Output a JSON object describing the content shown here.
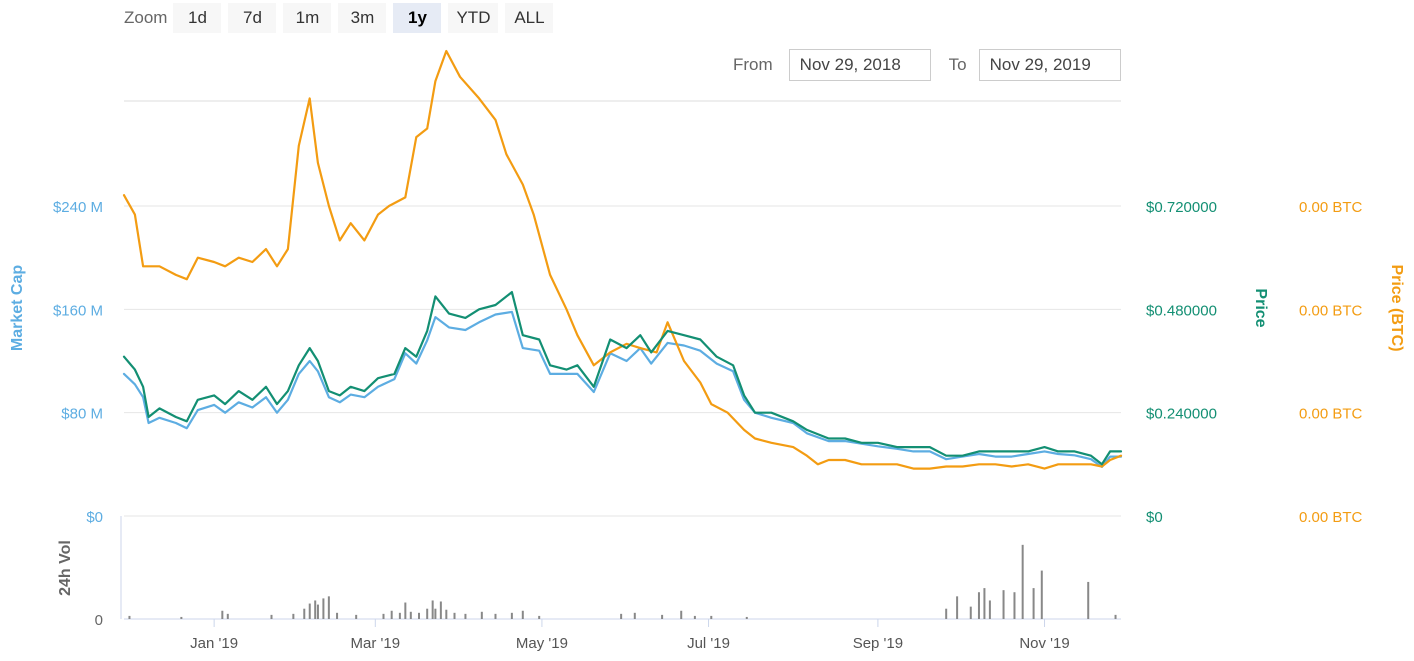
{
  "zoom": {
    "label": "Zoom",
    "buttons": [
      "1d",
      "7d",
      "1m",
      "3m",
      "1y",
      "YTD",
      "ALL"
    ],
    "active": "1y"
  },
  "range": {
    "from_label": "From",
    "from_value": "Nov 29, 2018",
    "to_label": "To",
    "to_value": "Nov 29, 2019"
  },
  "colors": {
    "market_cap": "#5DADE2",
    "price": "#138F73",
    "price_btc": "#F39C12",
    "volume": "#888888",
    "grid": "#e6e6e6"
  },
  "chart_data": {
    "type": "line",
    "x_range": [
      "2018-11-29",
      "2019-11-29"
    ],
    "x_ticks": [
      {
        "date": "2019-01-01",
        "label": "Jan '19"
      },
      {
        "date": "2019-03-01",
        "label": "Mar '19"
      },
      {
        "date": "2019-05-01",
        "label": "May '19"
      },
      {
        "date": "2019-07-01",
        "label": "Jul '19"
      },
      {
        "date": "2019-09-01",
        "label": "Sep '19"
      },
      {
        "date": "2019-11-01",
        "label": "Nov '19"
      }
    ],
    "axes": {
      "market_cap": {
        "title": "Market Cap",
        "ticks": [
          "$0",
          "$80 M",
          "$160 M",
          "$240 M"
        ],
        "range": [
          0,
          240000000
        ]
      },
      "price": {
        "title": "Price",
        "ticks": [
          "$0",
          "$0.240000",
          "$0.480000",
          "$0.720000"
        ],
        "range": [
          0,
          0.72
        ]
      },
      "price_btc": {
        "title": "Price (BTC)",
        "ticks": [
          "0.00 BTC",
          "0.00 BTC",
          "0.00 BTC",
          "0.00 BTC"
        ]
      },
      "volume": {
        "title": "24h Vol",
        "ticks": [
          "0",
          "0"
        ]
      }
    },
    "series": [
      {
        "key": "market_cap",
        "axis": "market_cap",
        "points": [
          [
            "2018-11-29",
            110
          ],
          [
            "2018-12-03",
            102
          ],
          [
            "2018-12-06",
            92
          ],
          [
            "2018-12-08",
            72
          ],
          [
            "2018-12-12",
            76
          ],
          [
            "2018-12-18",
            72
          ],
          [
            "2018-12-22",
            68
          ],
          [
            "2018-12-26",
            82
          ],
          [
            "2019-01-01",
            86
          ],
          [
            "2019-01-05",
            80
          ],
          [
            "2019-01-10",
            88
          ],
          [
            "2019-01-15",
            84
          ],
          [
            "2019-01-20",
            92
          ],
          [
            "2019-01-24",
            80
          ],
          [
            "2019-01-28",
            90
          ],
          [
            "2019-02-01",
            110
          ],
          [
            "2019-02-05",
            120
          ],
          [
            "2019-02-08",
            112
          ],
          [
            "2019-02-12",
            92
          ],
          [
            "2019-02-16",
            88
          ],
          [
            "2019-02-20",
            94
          ],
          [
            "2019-02-25",
            92
          ],
          [
            "2019-03-02",
            100
          ],
          [
            "2019-03-08",
            106
          ],
          [
            "2019-03-12",
            126
          ],
          [
            "2019-03-16",
            118
          ],
          [
            "2019-03-20",
            136
          ],
          [
            "2019-03-23",
            154
          ],
          [
            "2019-03-28",
            146
          ],
          [
            "2019-04-03",
            144
          ],
          [
            "2019-04-08",
            150
          ],
          [
            "2019-04-14",
            156
          ],
          [
            "2019-04-20",
            158
          ],
          [
            "2019-04-24",
            130
          ],
          [
            "2019-04-30",
            128
          ],
          [
            "2019-05-04",
            110
          ],
          [
            "2019-05-10",
            110
          ],
          [
            "2019-05-14",
            110
          ],
          [
            "2019-05-20",
            96
          ],
          [
            "2019-05-26",
            126
          ],
          [
            "2019-06-01",
            120
          ],
          [
            "2019-06-06",
            130
          ],
          [
            "2019-06-10",
            118
          ],
          [
            "2019-06-16",
            134
          ],
          [
            "2019-06-22",
            132
          ],
          [
            "2019-06-28",
            128
          ],
          [
            "2019-07-04",
            118
          ],
          [
            "2019-07-10",
            112
          ],
          [
            "2019-07-14",
            90
          ],
          [
            "2019-07-18",
            80
          ],
          [
            "2019-07-24",
            76
          ],
          [
            "2019-08-01",
            72
          ],
          [
            "2019-08-06",
            64
          ],
          [
            "2019-08-14",
            58
          ],
          [
            "2019-08-20",
            58
          ],
          [
            "2019-08-26",
            56
          ],
          [
            "2019-09-01",
            54
          ],
          [
            "2019-09-08",
            52
          ],
          [
            "2019-09-14",
            50
          ],
          [
            "2019-09-20",
            50
          ],
          [
            "2019-09-26",
            44
          ],
          [
            "2019-10-02",
            46
          ],
          [
            "2019-10-08",
            48
          ],
          [
            "2019-10-14",
            46
          ],
          [
            "2019-10-20",
            46
          ],
          [
            "2019-10-26",
            48
          ],
          [
            "2019-11-01",
            50
          ],
          [
            "2019-11-06",
            48
          ],
          [
            "2019-11-12",
            47
          ],
          [
            "2019-11-18",
            44
          ],
          [
            "2019-11-22",
            38
          ],
          [
            "2019-11-25",
            46
          ],
          [
            "2019-11-29",
            46
          ]
        ]
      },
      {
        "key": "price",
        "axis": "price",
        "points": [
          [
            "2018-11-29",
            0.37
          ],
          [
            "2018-12-03",
            0.34
          ],
          [
            "2018-12-06",
            0.3
          ],
          [
            "2018-12-08",
            0.23
          ],
          [
            "2018-12-12",
            0.25
          ],
          [
            "2018-12-18",
            0.23
          ],
          [
            "2018-12-22",
            0.22
          ],
          [
            "2018-12-26",
            0.27
          ],
          [
            "2019-01-01",
            0.28
          ],
          [
            "2019-01-05",
            0.26
          ],
          [
            "2019-01-10",
            0.29
          ],
          [
            "2019-01-15",
            0.27
          ],
          [
            "2019-01-20",
            0.3
          ],
          [
            "2019-01-24",
            0.26
          ],
          [
            "2019-01-28",
            0.29
          ],
          [
            "2019-02-01",
            0.35
          ],
          [
            "2019-02-05",
            0.39
          ],
          [
            "2019-02-08",
            0.36
          ],
          [
            "2019-02-12",
            0.29
          ],
          [
            "2019-02-16",
            0.28
          ],
          [
            "2019-02-20",
            0.3
          ],
          [
            "2019-02-25",
            0.29
          ],
          [
            "2019-03-02",
            0.32
          ],
          [
            "2019-03-08",
            0.33
          ],
          [
            "2019-03-12",
            0.39
          ],
          [
            "2019-03-16",
            0.37
          ],
          [
            "2019-03-20",
            0.43
          ],
          [
            "2019-03-23",
            0.51
          ],
          [
            "2019-03-28",
            0.47
          ],
          [
            "2019-04-03",
            0.46
          ],
          [
            "2019-04-08",
            0.48
          ],
          [
            "2019-04-14",
            0.49
          ],
          [
            "2019-04-20",
            0.52
          ],
          [
            "2019-04-24",
            0.42
          ],
          [
            "2019-04-30",
            0.41
          ],
          [
            "2019-05-04",
            0.35
          ],
          [
            "2019-05-10",
            0.34
          ],
          [
            "2019-05-14",
            0.35
          ],
          [
            "2019-05-20",
            0.3
          ],
          [
            "2019-05-26",
            0.41
          ],
          [
            "2019-06-01",
            0.39
          ],
          [
            "2019-06-06",
            0.42
          ],
          [
            "2019-06-10",
            0.38
          ],
          [
            "2019-06-16",
            0.43
          ],
          [
            "2019-06-22",
            0.42
          ],
          [
            "2019-06-28",
            0.41
          ],
          [
            "2019-07-04",
            0.37
          ],
          [
            "2019-07-10",
            0.35
          ],
          [
            "2019-07-14",
            0.28
          ],
          [
            "2019-07-18",
            0.24
          ],
          [
            "2019-07-24",
            0.24
          ],
          [
            "2019-08-01",
            0.22
          ],
          [
            "2019-08-06",
            0.2
          ],
          [
            "2019-08-14",
            0.18
          ],
          [
            "2019-08-20",
            0.18
          ],
          [
            "2019-08-26",
            0.17
          ],
          [
            "2019-09-01",
            0.17
          ],
          [
            "2019-09-08",
            0.16
          ],
          [
            "2019-09-14",
            0.16
          ],
          [
            "2019-09-20",
            0.16
          ],
          [
            "2019-09-26",
            0.14
          ],
          [
            "2019-10-02",
            0.14
          ],
          [
            "2019-10-08",
            0.15
          ],
          [
            "2019-10-14",
            0.15
          ],
          [
            "2019-10-20",
            0.15
          ],
          [
            "2019-10-26",
            0.15
          ],
          [
            "2019-11-01",
            0.16
          ],
          [
            "2019-11-06",
            0.15
          ],
          [
            "2019-11-12",
            0.15
          ],
          [
            "2019-11-18",
            0.14
          ],
          [
            "2019-11-22",
            0.12
          ],
          [
            "2019-11-25",
            0.15
          ],
          [
            "2019-11-29",
            0.15
          ]
        ]
      },
      {
        "key": "price_btc",
        "axis": "price_btc",
        "points": [
          [
            "2018-11-29",
            0.745
          ],
          [
            "2018-12-03",
            0.7
          ],
          [
            "2018-12-06",
            0.58
          ],
          [
            "2018-12-12",
            0.58
          ],
          [
            "2018-12-18",
            0.56
          ],
          [
            "2018-12-22",
            0.55
          ],
          [
            "2018-12-26",
            0.6
          ],
          [
            "2019-01-01",
            0.59
          ],
          [
            "2019-01-05",
            0.58
          ],
          [
            "2019-01-10",
            0.6
          ],
          [
            "2019-01-15",
            0.59
          ],
          [
            "2019-01-20",
            0.62
          ],
          [
            "2019-01-24",
            0.58
          ],
          [
            "2019-01-28",
            0.62
          ],
          [
            "2019-02-01",
            0.86
          ],
          [
            "2019-02-05",
            0.97
          ],
          [
            "2019-02-08",
            0.82
          ],
          [
            "2019-02-12",
            0.72
          ],
          [
            "2019-02-16",
            0.64
          ],
          [
            "2019-02-20",
            0.68
          ],
          [
            "2019-02-25",
            0.64
          ],
          [
            "2019-03-02",
            0.7
          ],
          [
            "2019-03-06",
            0.72
          ],
          [
            "2019-03-12",
            0.74
          ],
          [
            "2019-03-16",
            0.88
          ],
          [
            "2019-03-20",
            0.9
          ],
          [
            "2019-03-23",
            1.01
          ],
          [
            "2019-03-27",
            1.08
          ],
          [
            "2019-04-01",
            1.02
          ],
          [
            "2019-04-08",
            0.97
          ],
          [
            "2019-04-14",
            0.92
          ],
          [
            "2019-04-18",
            0.84
          ],
          [
            "2019-04-24",
            0.77
          ],
          [
            "2019-04-28",
            0.7
          ],
          [
            "2019-05-04",
            0.56
          ],
          [
            "2019-05-10",
            0.48
          ],
          [
            "2019-05-14",
            0.42
          ],
          [
            "2019-05-20",
            0.35
          ],
          [
            "2019-05-26",
            0.38
          ],
          [
            "2019-06-01",
            0.4
          ],
          [
            "2019-06-06",
            0.39
          ],
          [
            "2019-06-12",
            0.38
          ],
          [
            "2019-06-16",
            0.45
          ],
          [
            "2019-06-22",
            0.36
          ],
          [
            "2019-06-28",
            0.31
          ],
          [
            "2019-07-02",
            0.26
          ],
          [
            "2019-07-08",
            0.24
          ],
          [
            "2019-07-14",
            0.2
          ],
          [
            "2019-07-18",
            0.18
          ],
          [
            "2019-07-24",
            0.17
          ],
          [
            "2019-08-01",
            0.16
          ],
          [
            "2019-08-06",
            0.14
          ],
          [
            "2019-08-10",
            0.12
          ],
          [
            "2019-08-14",
            0.13
          ],
          [
            "2019-08-20",
            0.13
          ],
          [
            "2019-08-26",
            0.12
          ],
          [
            "2019-09-01",
            0.12
          ],
          [
            "2019-09-08",
            0.12
          ],
          [
            "2019-09-14",
            0.11
          ],
          [
            "2019-09-20",
            0.11
          ],
          [
            "2019-09-26",
            0.115
          ],
          [
            "2019-10-02",
            0.115
          ],
          [
            "2019-10-08",
            0.12
          ],
          [
            "2019-10-14",
            0.12
          ],
          [
            "2019-10-20",
            0.115
          ],
          [
            "2019-10-26",
            0.12
          ],
          [
            "2019-11-01",
            0.11
          ],
          [
            "2019-11-06",
            0.12
          ],
          [
            "2019-11-12",
            0.12
          ],
          [
            "2019-11-18",
            0.12
          ],
          [
            "2019-11-22",
            0.115
          ],
          [
            "2019-11-25",
            0.13
          ],
          [
            "2019-11-29",
            0.14
          ]
        ]
      }
    ],
    "volume": [
      [
        "2018-12-01",
        0.03
      ],
      [
        "2018-12-20",
        0.02
      ],
      [
        "2019-01-04",
        0.08
      ],
      [
        "2019-01-06",
        0.05
      ],
      [
        "2019-01-22",
        0.04
      ],
      [
        "2019-01-30",
        0.05
      ],
      [
        "2019-02-03",
        0.1
      ],
      [
        "2019-02-05",
        0.15
      ],
      [
        "2019-02-07",
        0.18
      ],
      [
        "2019-02-08",
        0.14
      ],
      [
        "2019-02-10",
        0.2
      ],
      [
        "2019-02-12",
        0.22
      ],
      [
        "2019-02-15",
        0.06
      ],
      [
        "2019-02-22",
        0.04
      ],
      [
        "2019-03-04",
        0.05
      ],
      [
        "2019-03-07",
        0.08
      ],
      [
        "2019-03-10",
        0.06
      ],
      [
        "2019-03-12",
        0.16
      ],
      [
        "2019-03-14",
        0.07
      ],
      [
        "2019-03-17",
        0.06
      ],
      [
        "2019-03-20",
        0.1
      ],
      [
        "2019-03-22",
        0.18
      ],
      [
        "2019-03-23",
        0.1
      ],
      [
        "2019-03-25",
        0.17
      ],
      [
        "2019-03-27",
        0.09
      ],
      [
        "2019-03-30",
        0.06
      ],
      [
        "2019-04-03",
        0.05
      ],
      [
        "2019-04-09",
        0.07
      ],
      [
        "2019-04-14",
        0.05
      ],
      [
        "2019-04-20",
        0.06
      ],
      [
        "2019-04-24",
        0.08
      ],
      [
        "2019-04-30",
        0.03
      ],
      [
        "2019-05-30",
        0.05
      ],
      [
        "2019-06-04",
        0.06
      ],
      [
        "2019-06-14",
        0.04
      ],
      [
        "2019-06-21",
        0.08
      ],
      [
        "2019-06-26",
        0.03
      ],
      [
        "2019-07-02",
        0.03
      ],
      [
        "2019-07-15",
        0.02
      ],
      [
        "2019-09-26",
        0.1
      ],
      [
        "2019-09-30",
        0.22
      ],
      [
        "2019-10-05",
        0.12
      ],
      [
        "2019-10-08",
        0.26
      ],
      [
        "2019-10-10",
        0.3
      ],
      [
        "2019-10-12",
        0.18
      ],
      [
        "2019-10-17",
        0.28
      ],
      [
        "2019-10-21",
        0.26
      ],
      [
        "2019-10-24",
        0.72
      ],
      [
        "2019-10-28",
        0.3
      ],
      [
        "2019-10-31",
        0.47
      ],
      [
        "2019-11-17",
        0.36
      ],
      [
        "2019-11-27",
        0.04
      ]
    ]
  }
}
